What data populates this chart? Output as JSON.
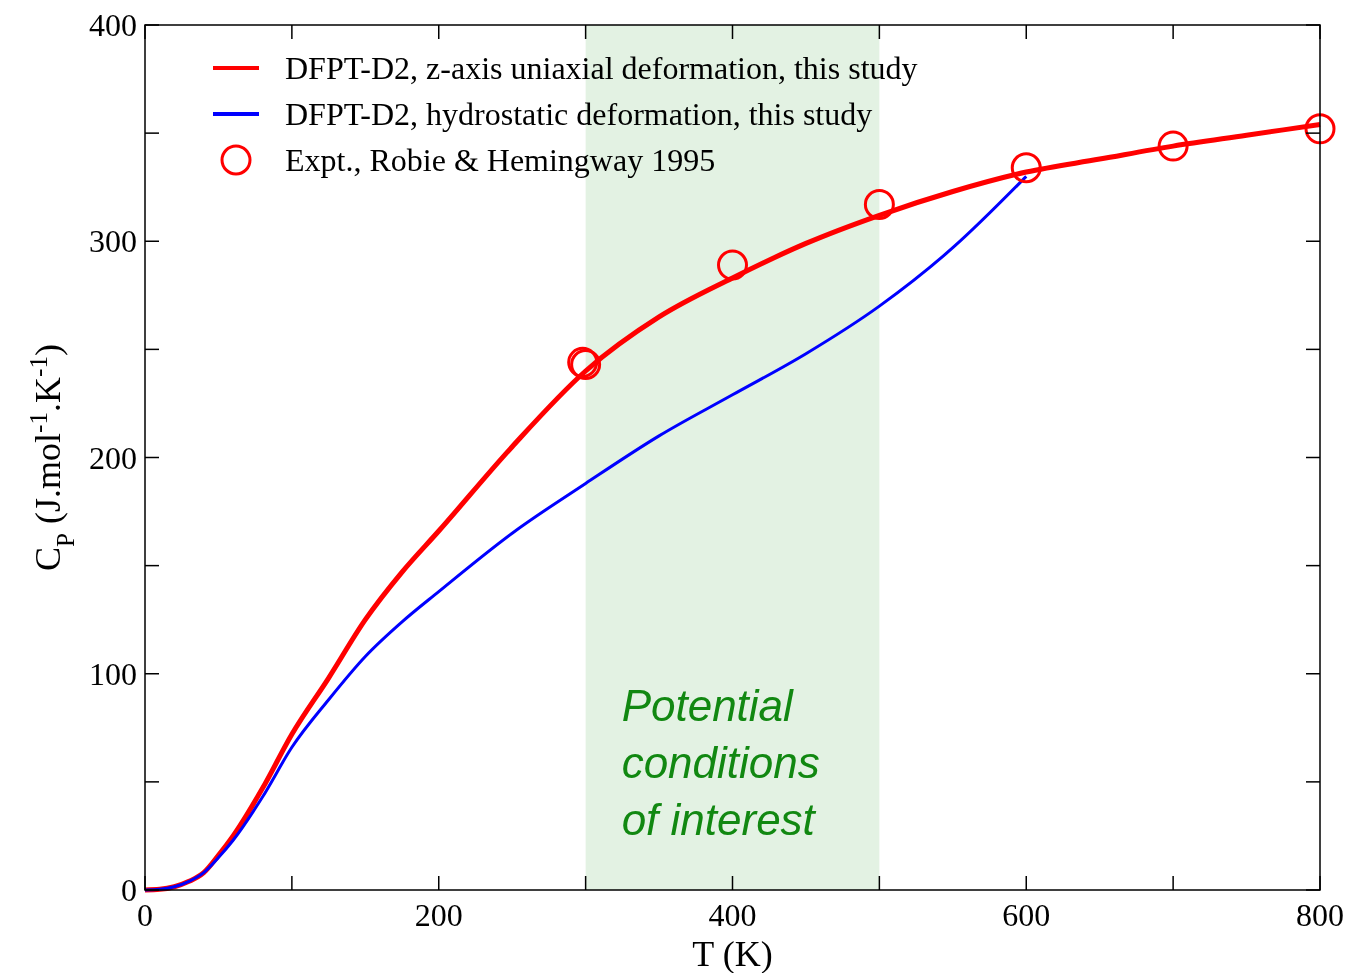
{
  "chart_data": {
    "type": "line",
    "xlabel": "T (K)",
    "ylabel": "C$_{P}$ (J.mol$^{-1}$.K$^{-1}$)",
    "xlim": [
      0,
      800
    ],
    "ylim": [
      0,
      400
    ],
    "xticks": [
      0,
      {
        "value": 100,
        "label": null
      },
      200,
      {
        "value": 300,
        "label": null
      },
      400,
      {
        "value": 500,
        "label": null
      },
      600,
      {
        "value": 700,
        "label": null
      },
      800
    ],
    "yticks": [
      0,
      {
        "value": 50,
        "label": null
      },
      100,
      {
        "value": 150,
        "label": null
      },
      200,
      {
        "value": 250,
        "label": null
      },
      300,
      {
        "value": 350,
        "label": null
      },
      400
    ],
    "grid": false,
    "legend": "top left",
    "line_style": "solid",
    "bands": [
      {
        "axis": "x",
        "from": 300,
        "to": 500,
        "label": "Potential conditions of interest",
        "color": "#e3f2e3"
      }
    ],
    "series": [
      {
        "name": "DFPT-D2, z-axis uniaxial deformation, this study",
        "color": "#ff0000",
        "marker": "none",
        "x": [
          0,
          10,
          20,
          30,
          40,
          50,
          60,
          80,
          100,
          125,
          150,
          175,
          200,
          250,
          300,
          350,
          400,
          450,
          500,
          550,
          600,
          650,
          700,
          750,
          800
        ],
        "values": [
          0,
          0.3,
          1.5,
          4,
          8,
          16,
          25,
          47,
          72,
          98,
          125,
          147,
          166,
          205,
          240,
          265,
          283,
          299,
          312,
          323,
          332,
          338,
          344,
          349,
          354
        ]
      },
      {
        "name": "DFPT-D2, hydrostatic deformation, this study",
        "color": "#0000ff",
        "marker": "none",
        "x": [
          0,
          10,
          20,
          30,
          40,
          50,
          60,
          80,
          100,
          125,
          150,
          175,
          200,
          250,
          300,
          350,
          400,
          450,
          500,
          550,
          600
        ],
        "values": [
          0,
          0.3,
          1.5,
          4,
          8,
          15,
          23,
          43,
          66,
          88,
          108,
          124,
          138,
          165,
          188,
          210,
          229,
          248,
          270,
          297,
          330
        ]
      },
      {
        "name": "Expt., Robie & Hemingway 1995",
        "type": "scatter",
        "color": "#ff0000",
        "marker": "circle",
        "x": [
          298,
          300,
          400,
          500,
          600,
          700,
          800
        ],
        "values": [
          244,
          243,
          289,
          317,
          334,
          344,
          352
        ]
      }
    ]
  }
}
